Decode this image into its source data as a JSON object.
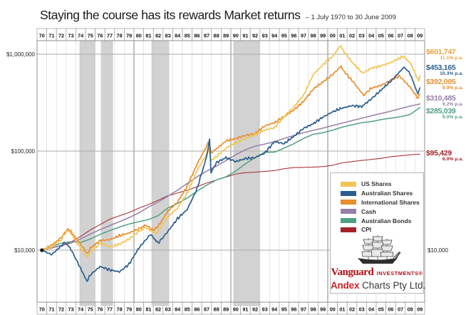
{
  "header": {
    "title": "Staying the course has its rewards Market returns",
    "period": "– 1 July 1970 to 30 June 2009"
  },
  "axis": {
    "y_ticks": [
      {
        "label": "$1,000,000",
        "value": 1000000,
        "y": 76
      },
      {
        "label": "$100,000",
        "value": 100000,
        "y": 212
      },
      {
        "label": "$10,000",
        "value": 10000,
        "y": 351
      }
    ],
    "y_right_label": "$10,000",
    "years": [
      "70",
      "71",
      "72",
      "73",
      "74",
      "75",
      "76",
      "77",
      "78",
      "79",
      "80",
      "81",
      "82",
      "83",
      "84",
      "85",
      "86",
      "87",
      "88",
      "89",
      "90",
      "91",
      "92",
      "93",
      "94",
      "95",
      "96",
      "97",
      "98",
      "99",
      "00",
      "01",
      "02",
      "03",
      "04",
      "05",
      "06",
      "07",
      "08",
      "09"
    ]
  },
  "logos": {
    "vanguard_name": "Vanguard",
    "vanguard_sub": "INVESTMENTS®",
    "andex_name": "Andex",
    "andex_rest": "Charts Pty Ltd."
  },
  "chart_data": {
    "type": "line",
    "title": "Staying the course has its rewards Market returns",
    "subtitle": "1 July 1970 to 30 June 2009",
    "y_scale": "log",
    "ylim": [
      4000,
      1400000
    ],
    "x_years_start": 1970,
    "start_value": 10000,
    "grid": "yearly vertical, decade emphasized",
    "legend_position": "bottom-right box with Vanguard/Andex logos",
    "recession_bands_t": [
      [
        3.91,
        5.46
      ],
      [
        6.12,
        7.3
      ],
      [
        11.34,
        13.1
      ],
      [
        19.79,
        22.44
      ]
    ],
    "series": [
      {
        "name": "CPI",
        "color": "#a42328",
        "jagged": false,
        "width": 1.0,
        "seed": 6,
        "final_label": "$95,429",
        "rate": "6.0% p.a.",
        "label_y_top": 211,
        "points": [
          [
            0,
            10000
          ],
          [
            1,
            10500
          ],
          [
            2,
            11200
          ],
          [
            3,
            12100
          ],
          [
            4,
            13800
          ],
          [
            5,
            16100
          ],
          [
            6,
            18200
          ],
          [
            7,
            20700
          ],
          [
            8,
            22400
          ],
          [
            9,
            24200
          ],
          [
            10,
            26800
          ],
          [
            11,
            29200
          ],
          [
            12,
            32300
          ],
          [
            13,
            35900
          ],
          [
            14,
            38300
          ],
          [
            15,
            40900
          ],
          [
            16,
            44300
          ],
          [
            17,
            48400
          ],
          [
            18,
            51900
          ],
          [
            19,
            55700
          ],
          [
            20,
            59800
          ],
          [
            21,
            61800
          ],
          [
            22,
            62500
          ],
          [
            23,
            63700
          ],
          [
            24,
            64800
          ],
          [
            25,
            67800
          ],
          [
            26,
            69700
          ],
          [
            27,
            69900
          ],
          [
            28,
            70400
          ],
          [
            29,
            71200
          ],
          [
            30,
            73500
          ],
          [
            31,
            77900
          ],
          [
            32,
            80100
          ],
          [
            33,
            82300
          ],
          [
            34,
            84300
          ],
          [
            35,
            86400
          ],
          [
            36,
            89900
          ],
          [
            37,
            91800
          ],
          [
            38,
            94000
          ],
          [
            39,
            95429
          ]
        ]
      },
      {
        "name": "Australian Bonds",
        "color": "#4fa086",
        "jagged": false,
        "width": 1.5,
        "seed": 5,
        "final_label": "$285,039",
        "rate": "9.0% p.a.",
        "label_y_top": 152,
        "points": [
          [
            0,
            10000
          ],
          [
            1,
            10800
          ],
          [
            2,
            11800
          ],
          [
            3,
            12200
          ],
          [
            4,
            12000
          ],
          [
            5,
            13000
          ],
          [
            6,
            14500
          ],
          [
            7,
            15800
          ],
          [
            8,
            17200
          ],
          [
            9,
            18500
          ],
          [
            10,
            19500
          ],
          [
            11,
            20500
          ],
          [
            12,
            22500
          ],
          [
            13,
            27000
          ],
          [
            14,
            30000
          ],
          [
            15,
            34000
          ],
          [
            16,
            40000
          ],
          [
            17,
            46000
          ],
          [
            18,
            52000
          ],
          [
            19,
            56000
          ],
          [
            20,
            64000
          ],
          [
            21,
            76000
          ],
          [
            22,
            88000
          ],
          [
            23,
            100000
          ],
          [
            24,
            100000
          ],
          [
            25,
            110000
          ],
          [
            26,
            122000
          ],
          [
            27,
            138000
          ],
          [
            28,
            152000
          ],
          [
            29,
            158000
          ],
          [
            30,
            168000
          ],
          [
            31,
            180000
          ],
          [
            32,
            190000
          ],
          [
            33,
            200000
          ],
          [
            34,
            205000
          ],
          [
            35,
            215000
          ],
          [
            36,
            222000
          ],
          [
            37,
            230000
          ],
          [
            38,
            242000
          ],
          [
            39,
            285039
          ]
        ]
      },
      {
        "name": "Cash",
        "color": "#977fa8",
        "jagged": false,
        "width": 1.5,
        "seed": 4,
        "final_label": "$310,485",
        "rate": "9.2% p.a.",
        "label_y_top": 134,
        "points": [
          [
            0,
            10000
          ],
          [
            1,
            10500
          ],
          [
            2,
            11100
          ],
          [
            3,
            11800
          ],
          [
            4,
            13000
          ],
          [
            5,
            14600
          ],
          [
            6,
            16200
          ],
          [
            7,
            17800
          ],
          [
            8,
            19500
          ],
          [
            9,
            21500
          ],
          [
            10,
            24000
          ],
          [
            11,
            27500
          ],
          [
            12,
            31000
          ],
          [
            13,
            35500
          ],
          [
            14,
            41000
          ],
          [
            15,
            48000
          ],
          [
            16,
            56000
          ],
          [
            17,
            64000
          ],
          [
            18,
            72000
          ],
          [
            19,
            82000
          ],
          [
            20,
            94000
          ],
          [
            21,
            106000
          ],
          [
            22,
            115000
          ],
          [
            23,
            121000
          ],
          [
            24,
            128000
          ],
          [
            25,
            138000
          ],
          [
            26,
            148000
          ],
          [
            27,
            158000
          ],
          [
            28,
            167000
          ],
          [
            29,
            176000
          ],
          [
            30,
            187000
          ],
          [
            31,
            198000
          ],
          [
            32,
            210000
          ],
          [
            33,
            222000
          ],
          [
            34,
            235000
          ],
          [
            35,
            248000
          ],
          [
            36,
            262000
          ],
          [
            37,
            278000
          ],
          [
            38,
            295000
          ],
          [
            39,
            310485
          ]
        ]
      },
      {
        "name": "International Shares",
        "color": "#e78f2e",
        "jagged": true,
        "width": 1.7,
        "seed": 3,
        "final_label": "$392,005",
        "rate": "9.9% p.a.",
        "label_y_top": 111,
        "points": [
          [
            0,
            10000
          ],
          [
            1,
            11200
          ],
          [
            2,
            13500
          ],
          [
            2.7,
            16500
          ],
          [
            3,
            15500
          ],
          [
            4,
            11500
          ],
          [
            4.7,
            9200
          ],
          [
            5,
            10500
          ],
          [
            6,
            12500
          ],
          [
            7,
            12800
          ],
          [
            8,
            14000
          ],
          [
            9,
            15000
          ],
          [
            10,
            16500
          ],
          [
            10.7,
            18000
          ],
          [
            11.5,
            16000
          ],
          [
            12,
            17500
          ],
          [
            13,
            25000
          ],
          [
            14,
            31000
          ],
          [
            15,
            45000
          ],
          [
            16,
            75000
          ],
          [
            17,
            115000
          ],
          [
            17.25,
            130000
          ],
          [
            17.45,
            98000
          ],
          [
            18,
            108000
          ],
          [
            19,
            130000
          ],
          [
            20,
            138000
          ],
          [
            21,
            148000
          ],
          [
            22,
            155000
          ],
          [
            23,
            185000
          ],
          [
            24,
            200000
          ],
          [
            25,
            230000
          ],
          [
            26,
            270000
          ],
          [
            27,
            330000
          ],
          [
            28,
            440000
          ],
          [
            29,
            520000
          ],
          [
            30,
            620000
          ],
          [
            30.9,
            755000
          ],
          [
            31,
            700000
          ],
          [
            32,
            540000
          ],
          [
            33.2,
            380000
          ],
          [
            34,
            450000
          ],
          [
            35,
            480000
          ],
          [
            36,
            540000
          ],
          [
            36.9,
            600000
          ],
          [
            38,
            460000
          ],
          [
            38.8,
            355000
          ],
          [
            39,
            392005
          ]
        ]
      },
      {
        "name": "US Shares",
        "color": "#f2c452",
        "jagged": true,
        "width": 1.7,
        "seed": 1,
        "final_label": "$601,747",
        "rate": "11.1% p.a.",
        "label_color": "#e8a33d",
        "label_y_top": 69,
        "points": [
          [
            0,
            10000
          ],
          [
            1,
            10800
          ],
          [
            2,
            12800
          ],
          [
            2.6,
            16000
          ],
          [
            3,
            14800
          ],
          [
            4,
            10500
          ],
          [
            4.65,
            8500
          ],
          [
            5,
            9500
          ],
          [
            6,
            11800
          ],
          [
            7,
            10800
          ],
          [
            8,
            11500
          ],
          [
            9,
            13000
          ],
          [
            10,
            15500
          ],
          [
            10.6,
            17000
          ],
          [
            11.8,
            14800
          ],
          [
            12,
            15500
          ],
          [
            13,
            22000
          ],
          [
            14,
            27000
          ],
          [
            15,
            38000
          ],
          [
            16,
            65000
          ],
          [
            17,
            95000
          ],
          [
            17.25,
            108000
          ],
          [
            17.45,
            82000
          ],
          [
            18,
            90000
          ],
          [
            19,
            110000
          ],
          [
            20,
            125000
          ],
          [
            21,
            138000
          ],
          [
            22,
            150000
          ],
          [
            23,
            168000
          ],
          [
            24,
            178000
          ],
          [
            25,
            230000
          ],
          [
            26,
            290000
          ],
          [
            27,
            380000
          ],
          [
            28,
            620000
          ],
          [
            29,
            780000
          ],
          [
            30,
            950000
          ],
          [
            30.85,
            1230000
          ],
          [
            31,
            1120000
          ],
          [
            32,
            830000
          ],
          [
            33.1,
            640000
          ],
          [
            34,
            720000
          ],
          [
            35,
            760000
          ],
          [
            36,
            820000
          ],
          [
            37.3,
            950000
          ],
          [
            38,
            820000
          ],
          [
            38.9,
            530000
          ],
          [
            39,
            601747
          ]
        ]
      },
      {
        "name": "Australian Shares",
        "color": "#2a5e8e",
        "jagged": true,
        "width": 1.7,
        "seed": 2,
        "final_label": "$453,165",
        "rate": "10.3% p.a.",
        "label_y_top": 91,
        "points": [
          [
            0,
            10000
          ],
          [
            1,
            9000
          ],
          [
            2.4,
            12000
          ],
          [
            3,
            10200
          ],
          [
            4,
            6500
          ],
          [
            4.65,
            4800
          ],
          [
            5,
            5600
          ],
          [
            6,
            6800
          ],
          [
            7,
            6300
          ],
          [
            8,
            6000
          ],
          [
            9,
            7200
          ],
          [
            10,
            10500
          ],
          [
            11.2,
            14500
          ],
          [
            12,
            11800
          ],
          [
            13,
            15500
          ],
          [
            14,
            21000
          ],
          [
            15,
            26000
          ],
          [
            16,
            42000
          ],
          [
            17,
            90000
          ],
          [
            17.3,
            135000
          ],
          [
            17.45,
            62000
          ],
          [
            18,
            78000
          ],
          [
            19,
            88000
          ],
          [
            20,
            80000
          ],
          [
            21,
            86000
          ],
          [
            22,
            88000
          ],
          [
            23,
            98000
          ],
          [
            24,
            128000
          ],
          [
            25,
            122000
          ],
          [
            26,
            145000
          ],
          [
            27,
            175000
          ],
          [
            28,
            195000
          ],
          [
            29,
            228000
          ],
          [
            30,
            258000
          ],
          [
            31,
            282000
          ],
          [
            32,
            298000
          ],
          [
            33,
            292000
          ],
          [
            34,
            350000
          ],
          [
            35,
            430000
          ],
          [
            36,
            530000
          ],
          [
            37.4,
            740000
          ],
          [
            38,
            630000
          ],
          [
            38.8,
            392000
          ],
          [
            39,
            453165
          ]
        ]
      }
    ],
    "legend_order": [
      "US Shares",
      "Australian Shares",
      "International Shares",
      "Cash",
      "Australian Bonds",
      "CPI"
    ]
  }
}
